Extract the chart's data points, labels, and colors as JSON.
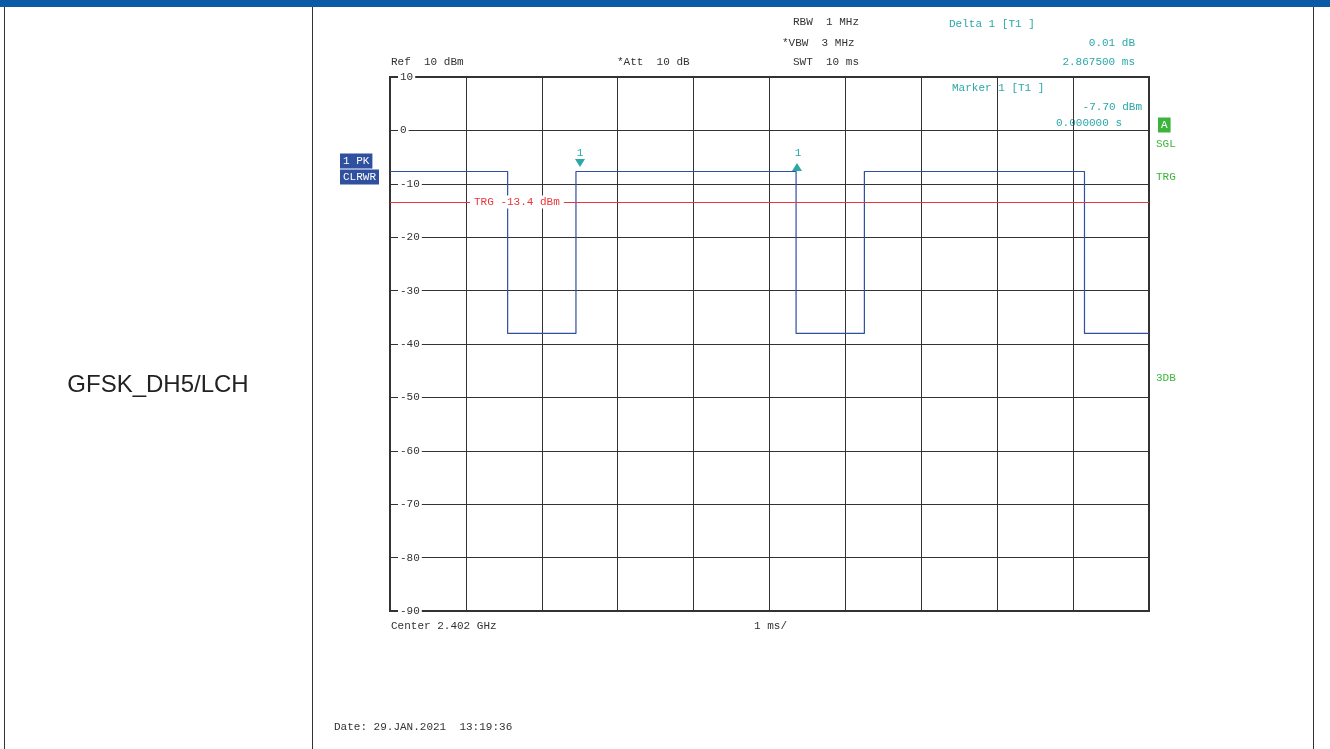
{
  "chart_data": {
    "type": "step",
    "title": "GFSK_DH5/LCH",
    "categories": [
      null,
      null,
      null,
      null,
      null,
      null,
      null,
      null,
      null,
      null,
      null,
      null,
      null,
      null,
      null,
      null,
      null,
      null,
      null,
      null,
      null,
      null,
      null,
      null,
      null,
      null,
      null,
      null,
      null,
      null,
      null,
      null,
      null,
      null,
      null,
      null,
      null,
      null,
      null,
      null,
      null,
      null,
      null,
      null,
      null,
      null,
      null,
      null,
      null,
      null,
      null,
      null,
      null,
      null,
      null,
      null,
      null,
      null,
      null,
      null,
      null,
      null,
      null,
      null,
      null,
      null,
      null,
      null,
      null,
      null,
      null,
      null,
      null,
      null,
      null,
      null,
      null,
      null,
      null,
      null,
      null,
      null,
      null,
      null,
      null,
      null,
      null,
      null,
      null,
      null,
      null,
      null,
      null,
      null,
      null,
      null,
      null,
      null,
      null,
      null,
      null
    ],
    "series": [
      {
        "color": "#2f4f9f",
        "values": [
          -7.7,
          -7.7,
          -7.7,
          -7.7,
          -7.7,
          -7.7,
          -7.7,
          -7.7,
          -7.7,
          -7.7,
          -7.7,
          -7.7,
          -7.7,
          -7.7,
          -7.7,
          -7.7,
          -38,
          -38,
          -38,
          -38,
          -38,
          -38,
          -38,
          -38,
          -38,
          -7.7,
          -7.7,
          -7.7,
          -7.7,
          -7.7,
          -7.7,
          -7.7,
          -7.7,
          -7.7,
          -7.7,
          -7.7,
          -7.7,
          -7.7,
          -7.7,
          -7.7,
          -7.7,
          -7.7,
          -7.7,
          -7.7,
          -7.7,
          -7.7,
          -7.7,
          -7.7,
          -7.7,
          -7.7,
          -7.7,
          -7.7,
          -7.7,
          -7.7,
          -38,
          -38,
          -38,
          -38,
          -38,
          -38,
          -38,
          -38,
          -38,
          -7.7,
          -7.7,
          -7.7,
          -7.7,
          -7.7,
          -7.7,
          -7.7,
          -7.7,
          -7.7,
          -7.7,
          -7.7,
          -7.7,
          -7.7,
          -7.7,
          -7.7,
          -7.7,
          -7.7,
          -7.7,
          -7.7,
          -7.7,
          -7.7,
          -7.7,
          -7.7,
          -7.7,
          -7.7,
          -7.7,
          -7.7,
          -7.7,
          -7.7,
          -38,
          -38,
          -38,
          -38,
          -38,
          -38,
          -38,
          -38,
          -38
        ]
      }
    ],
    "ylim": [
      -90,
      10
    ],
    "yticks": [
      -90,
      -80,
      -70,
      -60,
      -50,
      -40,
      -30,
      -20,
      -10,
      0,
      10
    ],
    "tick_labels": "y",
    "grid": true,
    "line_style": "solid",
    "ref_lines": [
      {
        "axis": "y",
        "value": -13.4,
        "label": "TRG -13.4 dBm",
        "color": "#e8373c"
      }
    ],
    "annotations": [
      "Ref  10 dBm",
      "*Att  10 dB",
      "RBW  1 MHz",
      "*VBW  3 MHz",
      "SWT  10 ms",
      "Delta 1 [T1 ]",
      "0.01 dB",
      "2.867500 ms",
      "Marker 1 [T1 ]",
      "-7.70 dBm",
      "0.000000 s",
      "1 PK",
      "CLRWR",
      "A",
      "SGL",
      "TRG",
      "3DB",
      "Center 2.402 GHz",
      "1 ms/",
      "Date: 29.JAN.2021  13:19:36",
      "1",
      "1"
    ]
  }
}
